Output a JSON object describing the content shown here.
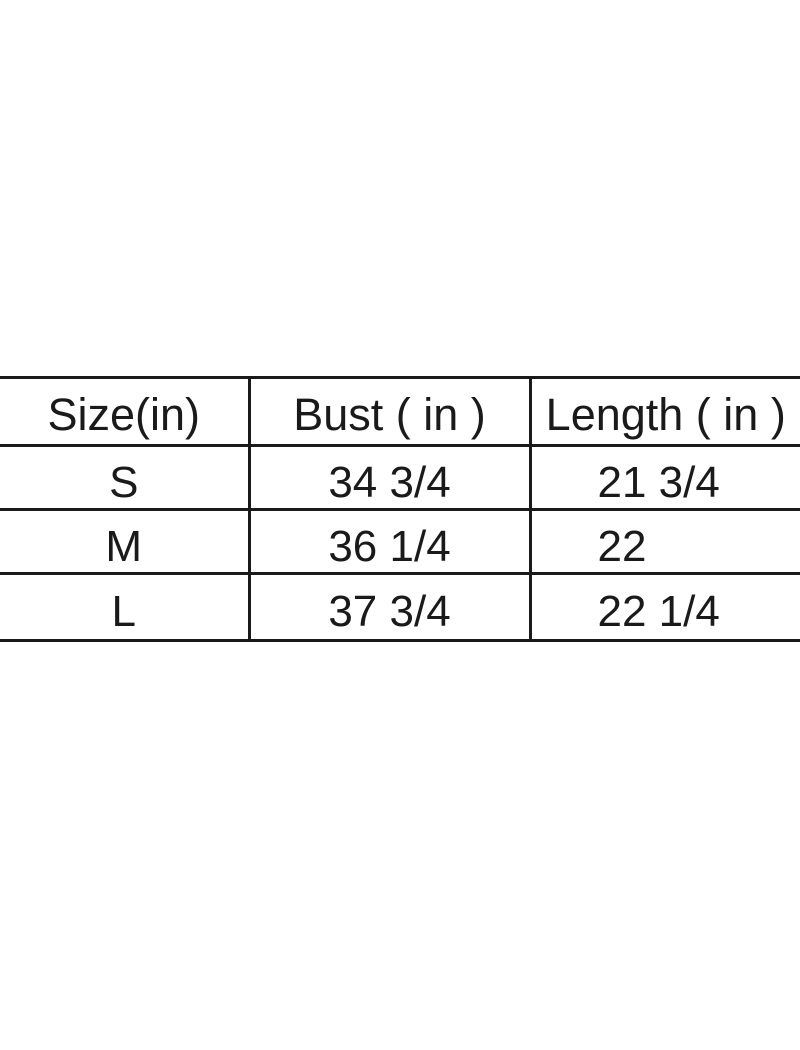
{
  "chart_data": {
    "type": "table",
    "title": "",
    "columns": [
      "Size(in)",
      "Bust ( in )",
      "Length ( in )"
    ],
    "rows": [
      [
        "S",
        "34 3/4",
        "21 3/4"
      ],
      [
        "M",
        "36 1/4",
        "22"
      ],
      [
        "L",
        "37 3/4",
        "22 1/4"
      ]
    ],
    "layout": {
      "grid": "horizontal rules full width, internal vertical dividers only",
      "header_position": "top row"
    }
  },
  "colors": {
    "background": "#ffffff",
    "text": "#1a1a1a",
    "border": "#1a1a1a"
  }
}
